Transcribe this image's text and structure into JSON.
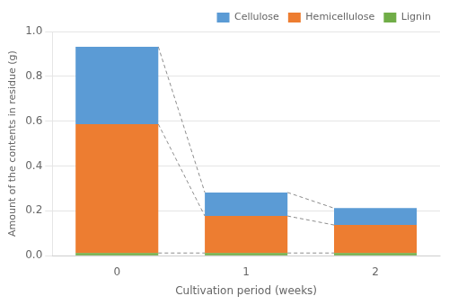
{
  "chart_data": {
    "type": "bar",
    "categories": [
      "0",
      "1",
      "2"
    ],
    "series": [
      {
        "name": "Lignin",
        "color": "#70AD47",
        "values": [
          0.012,
          0.012,
          0.012
        ]
      },
      {
        "name": "Hemicellulose",
        "color": "#ED7D31",
        "values": [
          0.575,
          0.165,
          0.125
        ]
      },
      {
        "name": "Cellulose",
        "color": "#5B9BD5",
        "values": [
          0.345,
          0.105,
          0.075
        ]
      }
    ],
    "stacked": true,
    "xlabel": "Cultivation period (weeks)",
    "ylabel": "Amount of the contents in residue (g)",
    "ylim": [
      0,
      1.0
    ],
    "yticks": [
      {
        "value": 0.0,
        "label": "0.0"
      },
      0.2,
      0.4,
      0.6,
      0.8,
      {
        "value": 1.0,
        "label": "1.0"
      }
    ],
    "grid": true,
    "legend": "upper right"
  }
}
